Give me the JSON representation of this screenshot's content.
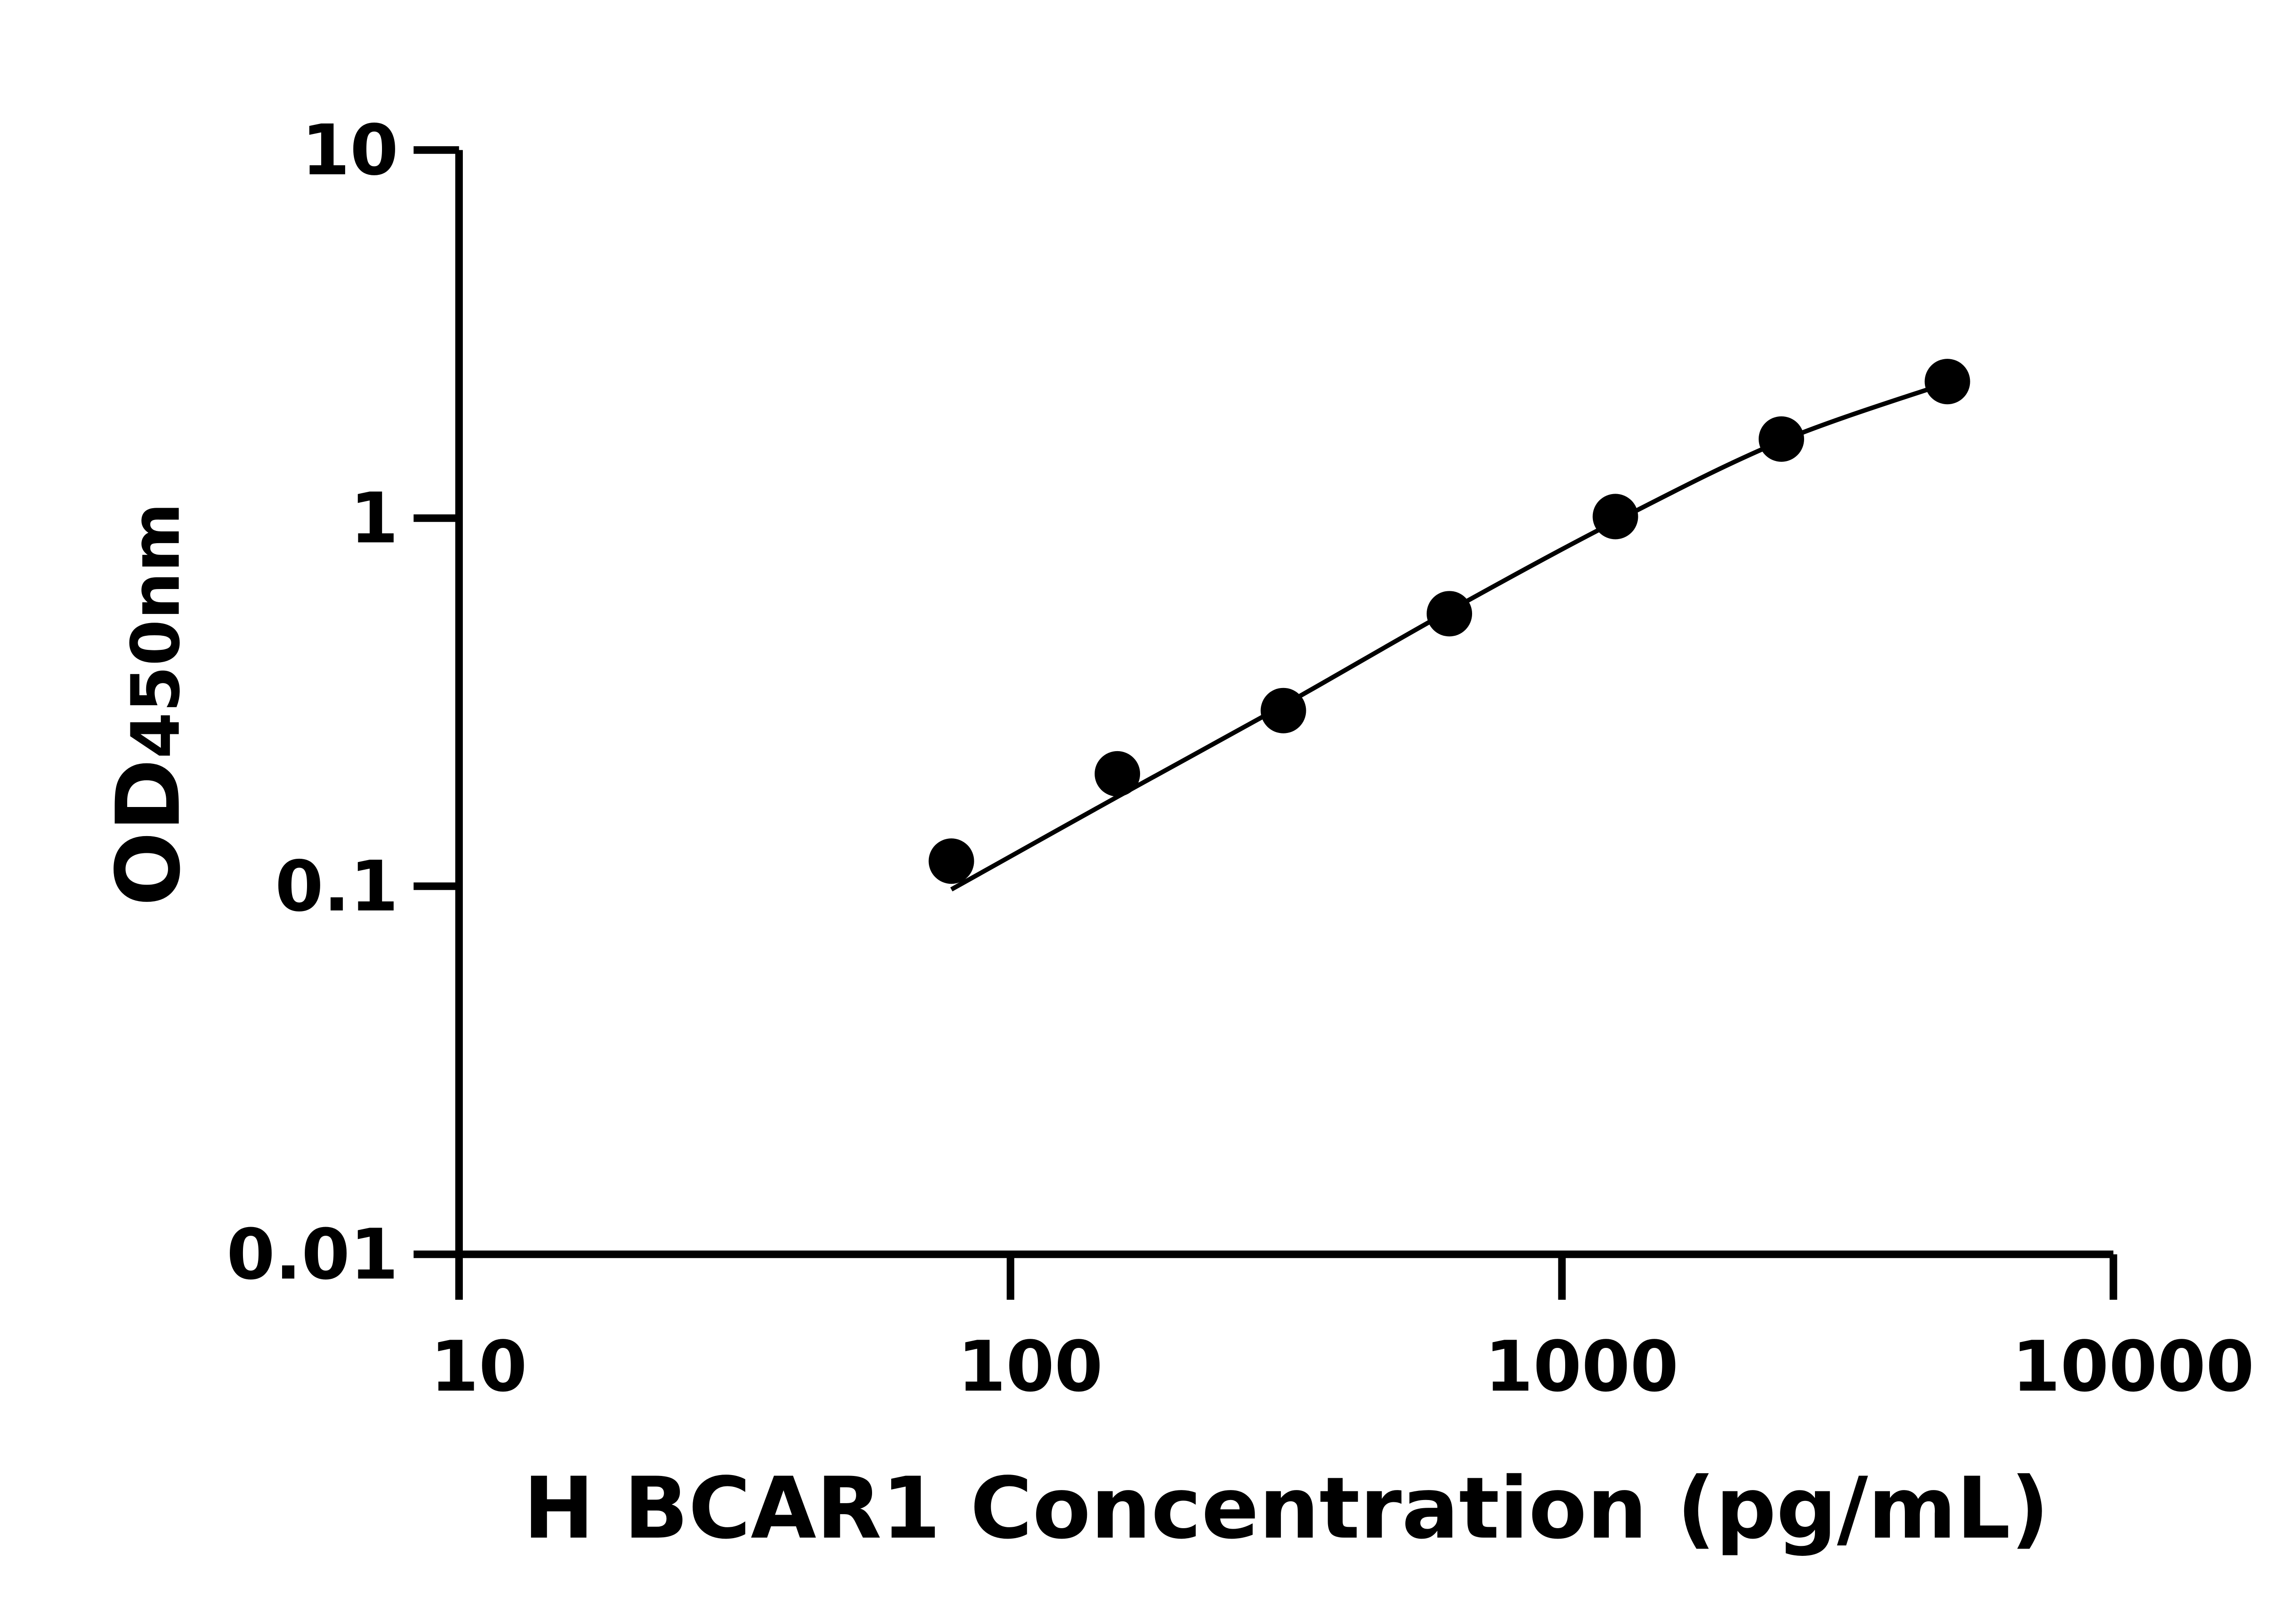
{
  "chart_data": {
    "type": "scatter",
    "title": "",
    "xlabel": "H BCAR1 Concentration (pg/mL)",
    "ylabel_main": "OD",
    "ylabel_sub": "450nm",
    "xscale": "log",
    "yscale": "log",
    "xlim": [
      10,
      10000
    ],
    "ylim": [
      0.01,
      10
    ],
    "xticks": [
      "10",
      "100",
      "1000",
      "10000"
    ],
    "yticks": [
      "0.01",
      "0.1",
      "1",
      "10"
    ],
    "grid": false,
    "legend": "none",
    "marker_color": "#000000",
    "points": {
      "x": [
        78.125,
        156.25,
        312.5,
        625,
        1250,
        2500,
        5000
      ],
      "y": [
        0.117,
        0.202,
        0.3,
        0.55,
        1.01,
        1.64,
        2.35
      ]
    },
    "fit_curve": {
      "x": [
        78.125,
        156.25,
        312.5,
        625,
        1250,
        2500,
        5000
      ],
      "y": [
        0.098,
        0.175,
        0.31,
        0.56,
        0.98,
        1.62,
        2.33
      ]
    }
  }
}
